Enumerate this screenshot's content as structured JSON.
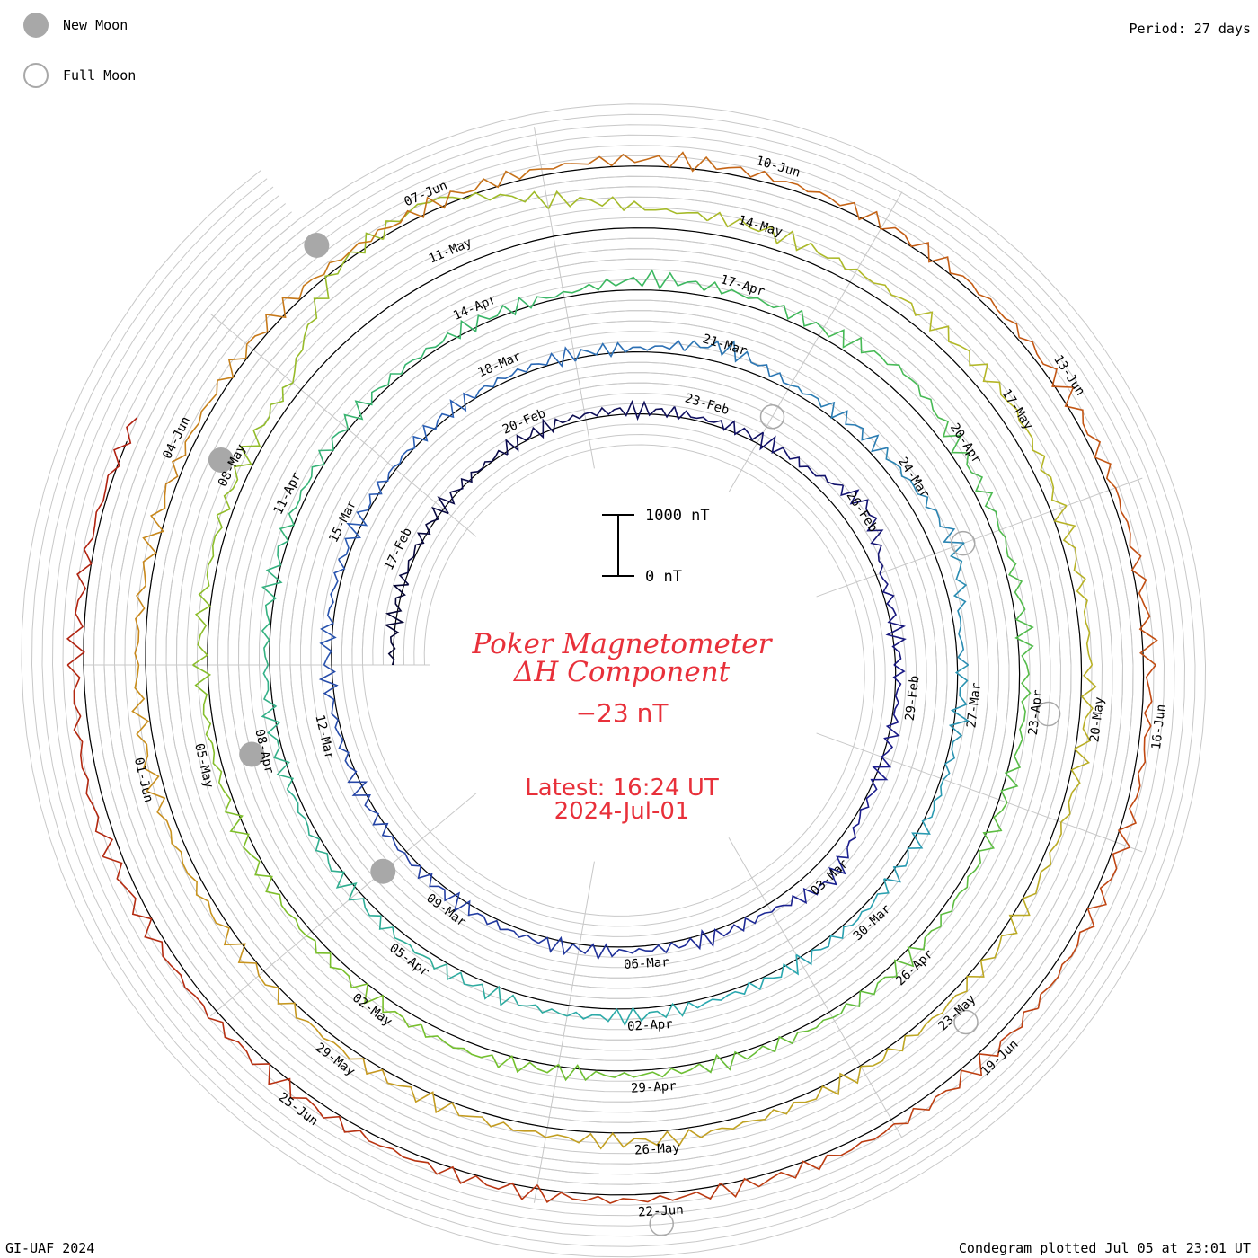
{
  "header": {
    "legend": [
      {
        "label": "New Moon",
        "kind": "new"
      },
      {
        "label": "Full Moon",
        "kind": "full"
      }
    ],
    "period": "Period: 27 days"
  },
  "footer": {
    "credit": "GI-UAF 2024",
    "plotted": "Condegram plotted Jul 05 at 23:01 UT"
  },
  "chart_data": {
    "type": "line",
    "layout": "spiral-condegram",
    "title": "Poker Magnetometer",
    "subtitle": "ΔH Component",
    "current_value": "−23 nT",
    "latest_time": "Latest: 16:24 UT",
    "latest_date": "2024-Jul-01",
    "scale_bar": {
      "top_label": "1000 nT",
      "bottom_label": "0 nT",
      "range_nT": [
        0,
        1000
      ]
    },
    "period_days": 27,
    "start_date": "2024-02-15",
    "end_date": "2024-07-01",
    "colors": {
      "title": "#e8303a",
      "grid": "#c8c8c8",
      "moon": "#a8a8a8",
      "series_gradient": [
        "#050530",
        "#1a1a8c",
        "#2b5fb5",
        "#2aa8b0",
        "#3cb860",
        "#74c02c",
        "#b4b828",
        "#c9921e",
        "#c24a12",
        "#b02010"
      ]
    },
    "date_labels": [
      {
        "label": "17-Feb",
        "date": "2024-02-17"
      },
      {
        "label": "20-Feb",
        "date": "2024-02-20"
      },
      {
        "label": "23-Feb",
        "date": "2024-02-23"
      },
      {
        "label": "26-Feb",
        "date": "2024-02-26"
      },
      {
        "label": "29-Feb",
        "date": "2024-02-29"
      },
      {
        "label": "03-Mar",
        "date": "2024-03-03"
      },
      {
        "label": "06-Mar",
        "date": "2024-03-06"
      },
      {
        "label": "09-Mar",
        "date": "2024-03-09"
      },
      {
        "label": "12-Mar",
        "date": "2024-03-12"
      },
      {
        "label": "15-Mar",
        "date": "2024-03-15"
      },
      {
        "label": "18-Mar",
        "date": "2024-03-18"
      },
      {
        "label": "21-Mar",
        "date": "2024-03-21"
      },
      {
        "label": "24-Mar",
        "date": "2024-03-24"
      },
      {
        "label": "27-Mar",
        "date": "2024-03-27"
      },
      {
        "label": "30-Mar",
        "date": "2024-03-30"
      },
      {
        "label": "02-Apr",
        "date": "2024-04-02"
      },
      {
        "label": "05-Apr",
        "date": "2024-04-05"
      },
      {
        "label": "08-Apr",
        "date": "2024-04-08"
      },
      {
        "label": "11-Apr",
        "date": "2024-04-11"
      },
      {
        "label": "14-Apr",
        "date": "2024-04-14"
      },
      {
        "label": "17-Apr",
        "date": "2024-04-17"
      },
      {
        "label": "20-Apr",
        "date": "2024-04-20"
      },
      {
        "label": "23-Apr",
        "date": "2024-04-23"
      },
      {
        "label": "26-Apr",
        "date": "2024-04-26"
      },
      {
        "label": "29-Apr",
        "date": "2024-04-29"
      },
      {
        "label": "02-May",
        "date": "2024-05-02"
      },
      {
        "label": "05-May",
        "date": "2024-05-05"
      },
      {
        "label": "08-May",
        "date": "2024-05-08"
      },
      {
        "label": "11-May",
        "date": "2024-05-11"
      },
      {
        "label": "14-May",
        "date": "2024-05-14"
      },
      {
        "label": "17-May",
        "date": "2024-05-17"
      },
      {
        "label": "20-May",
        "date": "2024-05-20"
      },
      {
        "label": "23-May",
        "date": "2024-05-23"
      },
      {
        "label": "26-May",
        "date": "2024-05-26"
      },
      {
        "label": "29-May",
        "date": "2024-05-29"
      },
      {
        "label": "01-Jun",
        "date": "2024-06-01"
      },
      {
        "label": "04-Jun",
        "date": "2024-06-04"
      },
      {
        "label": "07-Jun",
        "date": "2024-06-07"
      },
      {
        "label": "10-Jun",
        "date": "2024-06-10"
      },
      {
        "label": "13-Jun",
        "date": "2024-06-13"
      },
      {
        "label": "16-Jun",
        "date": "2024-06-16"
      },
      {
        "label": "19-Jun",
        "date": "2024-06-19"
      },
      {
        "label": "22-Jun",
        "date": "2024-06-22"
      },
      {
        "label": "25-Jun",
        "date": "2024-06-25"
      }
    ],
    "new_moons": [
      "2024-03-10",
      "2024-04-08",
      "2024-05-08",
      "2024-06-06"
    ],
    "full_moons": [
      "2024-02-24",
      "2024-03-25",
      "2024-04-23",
      "2024-05-23",
      "2024-06-22"
    ],
    "series": [
      {
        "name": "ΔH",
        "points": [
          {
            "date": "2024-02-15",
            "v": -20
          },
          {
            "date": "2024-02-17",
            "v": -40
          },
          {
            "date": "2024-02-19",
            "v": -30
          },
          {
            "date": "2024-02-21",
            "v": -80
          },
          {
            "date": "2024-02-23",
            "v": -50
          },
          {
            "date": "2024-02-25",
            "v": -120
          },
          {
            "date": "2024-02-26",
            "v": -420
          },
          {
            "date": "2024-02-27",
            "v": -90
          },
          {
            "date": "2024-02-29",
            "v": -40
          },
          {
            "date": "2024-03-02",
            "v": -60
          },
          {
            "date": "2024-03-03",
            "v": -350
          },
          {
            "date": "2024-03-04",
            "v": -110
          },
          {
            "date": "2024-03-06",
            "v": -70
          },
          {
            "date": "2024-03-08",
            "v": -90
          },
          {
            "date": "2024-03-10",
            "v": -60
          },
          {
            "date": "2024-03-12",
            "v": -50
          },
          {
            "date": "2024-03-14",
            "v": -80
          },
          {
            "date": "2024-03-16",
            "v": -40
          },
          {
            "date": "2024-03-18",
            "v": -70
          },
          {
            "date": "2024-03-20",
            "v": -60
          },
          {
            "date": "2024-03-21",
            "v": -260
          },
          {
            "date": "2024-03-22",
            "v": -80
          },
          {
            "date": "2024-03-24",
            "v": -200
          },
          {
            "date": "2024-03-25",
            "v": -380
          },
          {
            "date": "2024-03-26",
            "v": -90
          },
          {
            "date": "2024-03-28",
            "v": -60
          },
          {
            "date": "2024-03-30",
            "v": -80
          },
          {
            "date": "2024-04-01",
            "v": -70
          },
          {
            "date": "2024-04-03",
            "v": -150
          },
          {
            "date": "2024-04-05",
            "v": -110
          },
          {
            "date": "2024-04-07",
            "v": -80
          },
          {
            "date": "2024-04-09",
            "v": -60
          },
          {
            "date": "2024-04-11",
            "v": -90
          },
          {
            "date": "2024-04-13",
            "v": -70
          },
          {
            "date": "2024-04-15",
            "v": -60
          },
          {
            "date": "2024-04-16",
            "v": -180
          },
          {
            "date": "2024-04-18",
            "v": -120
          },
          {
            "date": "2024-04-19",
            "v": -320
          },
          {
            "date": "2024-04-20",
            "v": -160
          },
          {
            "date": "2024-04-22",
            "v": -120
          },
          {
            "date": "2024-04-24",
            "v": -90
          },
          {
            "date": "2024-04-26",
            "v": -110
          },
          {
            "date": "2024-04-28",
            "v": -80
          },
          {
            "date": "2024-04-30",
            "v": -70
          },
          {
            "date": "2024-05-01",
            "v": -160
          },
          {
            "date": "2024-05-03",
            "v": -100
          },
          {
            "date": "2024-05-05",
            "v": -90
          },
          {
            "date": "2024-05-07",
            "v": -120
          },
          {
            "date": "2024-05-09",
            "v": -200
          },
          {
            "date": "2024-05-10",
            "v": -1000
          },
          {
            "date": "2024-05-11",
            "v": -1200
          },
          {
            "date": "2024-05-12",
            "v": -600
          },
          {
            "date": "2024-05-13",
            "v": -300
          },
          {
            "date": "2024-05-15",
            "v": -200
          },
          {
            "date": "2024-05-17",
            "v": -260
          },
          {
            "date": "2024-05-18",
            "v": -150
          },
          {
            "date": "2024-05-20",
            "v": -120
          },
          {
            "date": "2024-05-22",
            "v": -100
          },
          {
            "date": "2024-05-24",
            "v": -90
          },
          {
            "date": "2024-05-26",
            "v": -140
          },
          {
            "date": "2024-05-28",
            "v": -110
          },
          {
            "date": "2024-05-30",
            "v": -90
          },
          {
            "date": "2024-06-01",
            "v": -160
          },
          {
            "date": "2024-06-03",
            "v": -120
          },
          {
            "date": "2024-06-05",
            "v": -100
          },
          {
            "date": "2024-06-07",
            "v": -90
          },
          {
            "date": "2024-06-09",
            "v": -110
          },
          {
            "date": "2024-06-11",
            "v": -80
          },
          {
            "date": "2024-06-13",
            "v": -100
          },
          {
            "date": "2024-06-15",
            "v": -90
          },
          {
            "date": "2024-06-17",
            "v": -120
          },
          {
            "date": "2024-06-19",
            "v": -150
          },
          {
            "date": "2024-06-21",
            "v": -100
          },
          {
            "date": "2024-06-23",
            "v": -80
          },
          {
            "date": "2024-06-25",
            "v": -110
          },
          {
            "date": "2024-06-27",
            "v": -130
          },
          {
            "date": "2024-06-28",
            "v": -200
          },
          {
            "date": "2024-06-29",
            "v": -140
          },
          {
            "date": "2024-07-01",
            "v": -23
          }
        ]
      }
    ]
  }
}
